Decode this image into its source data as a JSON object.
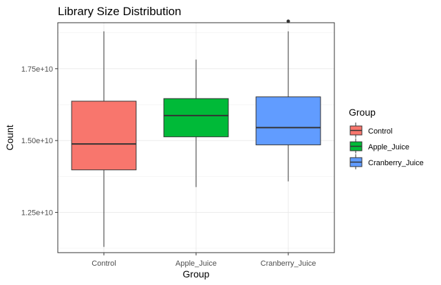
{
  "chart_data": {
    "type": "boxplot",
    "title": "Library Size Distribution",
    "xlabel": "Group",
    "ylabel": "Count",
    "categories": [
      "Control",
      "Apple_Juice",
      "Cranberry_Juice"
    ],
    "y_ticks": [
      12500000000,
      15000000000,
      17500000000
    ],
    "y_tick_labels": [
      "1.25e+10",
      "1.50e+10",
      "1.75e+10"
    ],
    "ylim": [
      11100000000,
      19100000000
    ],
    "grid": true,
    "legend": {
      "title": "Group",
      "placement": "right"
    },
    "series": [
      {
        "name": "Control",
        "color": "#F8766D",
        "min": 11300000000,
        "q1": 13980000000,
        "median": 14880000000,
        "q3": 16370000000,
        "max": 18800000000,
        "outliers": []
      },
      {
        "name": "Apple_Juice",
        "color": "#00BA38",
        "min": 13380000000,
        "q1": 15130000000,
        "median": 15870000000,
        "q3": 16460000000,
        "max": 17820000000,
        "outliers": []
      },
      {
        "name": "Cranberry_Juice",
        "color": "#619CFF",
        "min": 13580000000,
        "q1": 14850000000,
        "median": 15450000000,
        "q3": 16520000000,
        "max": 18800000000,
        "outliers": [
          19150000000
        ]
      }
    ]
  }
}
